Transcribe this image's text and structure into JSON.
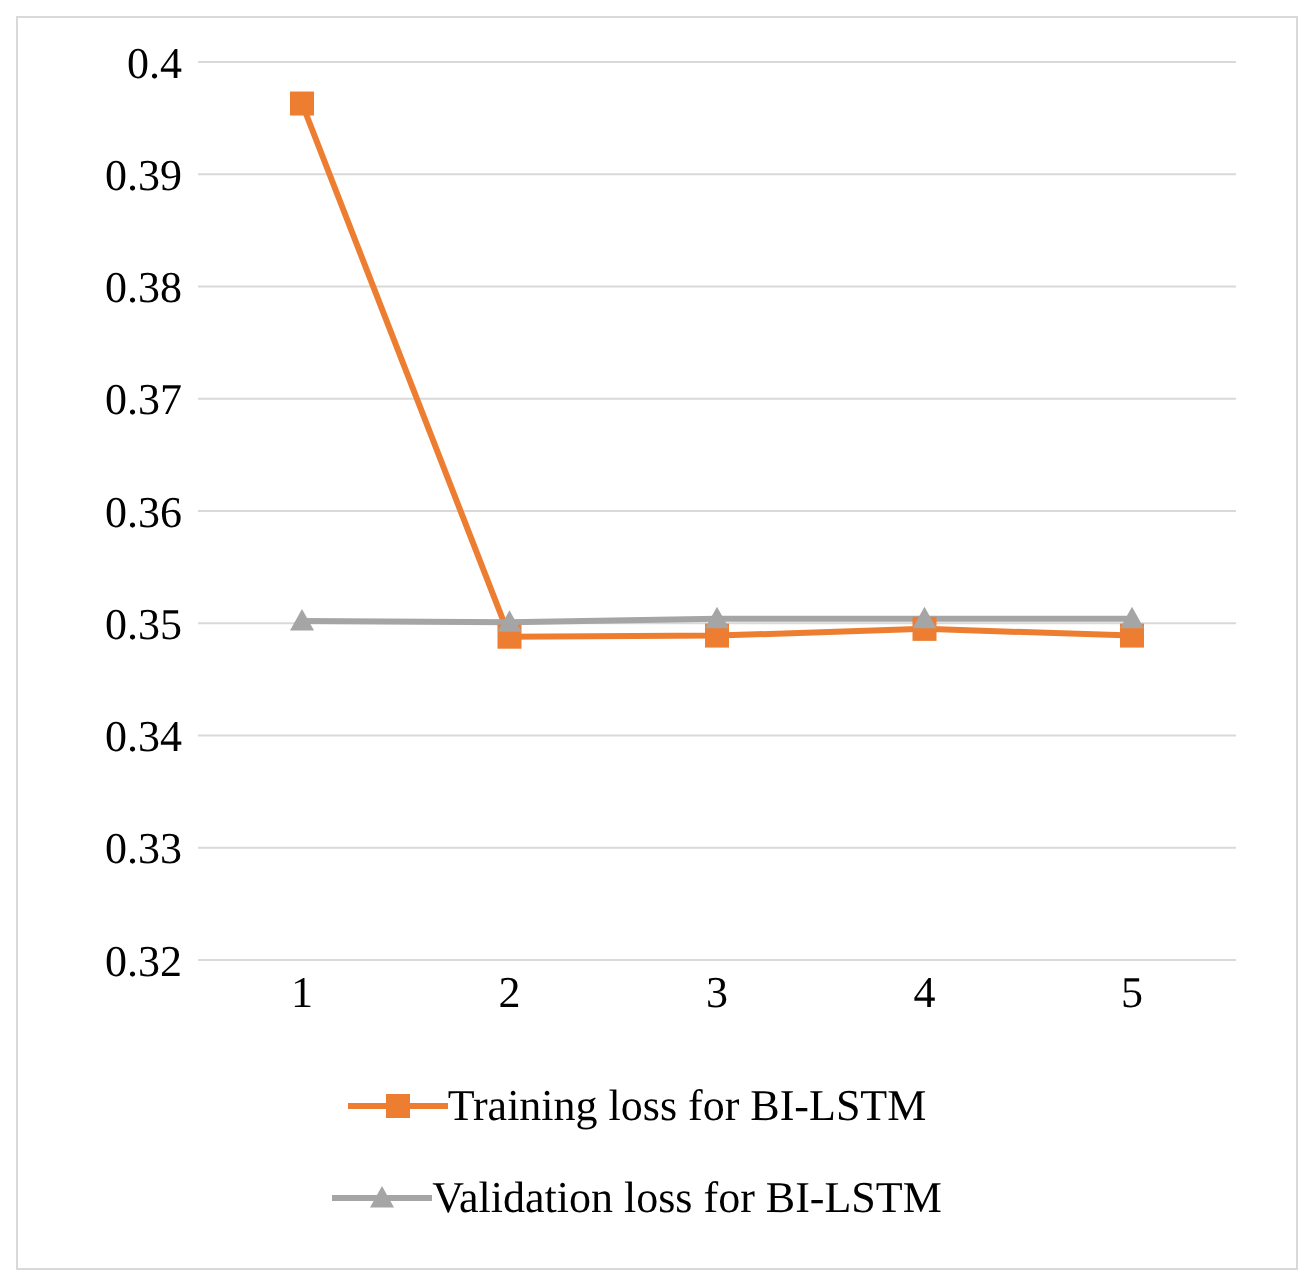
{
  "chart_data": {
    "type": "line",
    "categories": [
      "1",
      "2",
      "3",
      "4",
      "5"
    ],
    "series": [
      {
        "name": "Training loss for BI-LSTM",
        "color": "#ed7d31",
        "marker": "square",
        "values": [
          0.3963,
          0.3488,
          0.3489,
          0.3495,
          0.3489
        ]
      },
      {
        "name": "Validation loss for BI-LSTM",
        "color": "#a5a5a5",
        "marker": "triangle",
        "values": [
          0.3502,
          0.3501,
          0.3504,
          0.3504,
          0.3504
        ]
      }
    ],
    "ylim": [
      0.32,
      0.4
    ],
    "yticks": [
      0.32,
      0.33,
      0.34,
      0.35,
      0.36,
      0.37,
      0.38,
      0.39,
      0.4
    ],
    "grid": "y",
    "legend": "bottom"
  }
}
